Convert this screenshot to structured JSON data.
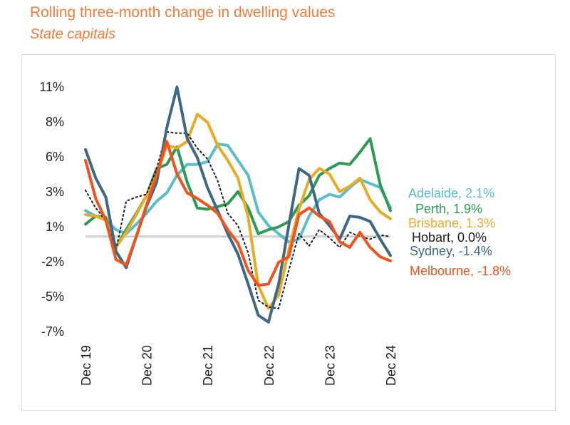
{
  "header": {
    "title": "Rolling three-month change in dwelling values",
    "subtitle": "State capitals"
  },
  "chart_data": {
    "type": "line",
    "title": "Rolling three-month change in dwelling values",
    "subtitle": "State capitals",
    "xlabel": "",
    "ylabel": "",
    "x_ticks": [
      "Dec 19",
      "Dec 20",
      "Dec 21",
      "Dec 22",
      "Dec 23",
      "Dec 24"
    ],
    "y_ticks": [
      "11%",
      "8%",
      "6%",
      "3%",
      "1%",
      "-2%",
      "-5%",
      "-7%"
    ],
    "y_tick_values": [
      11,
      8,
      6,
      3,
      1,
      -2,
      -5,
      -7
    ],
    "ylim": [
      -7,
      11
    ],
    "xlim": [
      0,
      60
    ],
    "grid": false,
    "zero_line": true,
    "legend": "end-labels-right",
    "x_unit": "months since Dec 19",
    "series": [
      {
        "name": "Adelaide",
        "end_label": "Adelaide, 2.1%",
        "color": "#5bbccc",
        "x": [
          0,
          2,
          4,
          6,
          8,
          10,
          12,
          14,
          16,
          18,
          20,
          22,
          24,
          26,
          28,
          30,
          32,
          34,
          36,
          38,
          40,
          42,
          44,
          46,
          48,
          50,
          52,
          54,
          56,
          58,
          60
        ],
        "y": [
          1.9,
          1.5,
          1.2,
          0.5,
          0.2,
          0.9,
          1.7,
          2.6,
          3.2,
          4.5,
          5.3,
          5.3,
          5.5,
          6.8,
          6.7,
          5.6,
          4.5,
          1.8,
          0.8,
          0.2,
          -0.4,
          -0.2,
          1.5,
          2.7,
          3.1,
          2.9,
          3.6,
          4.2,
          3.9,
          3.6,
          2.1
        ]
      },
      {
        "name": "Perth",
        "end_label": "Perth, 1.9%",
        "color": "#2e9a55",
        "x": [
          0,
          2,
          4,
          6,
          8,
          10,
          12,
          14,
          16,
          18,
          20,
          22,
          24,
          26,
          28,
          30,
          32,
          34,
          36,
          38,
          40,
          42,
          44,
          46,
          48,
          50,
          52,
          54,
          56,
          58,
          60
        ],
        "y": [
          0.9,
          1.5,
          1.4,
          -0.8,
          0.5,
          1.7,
          3.0,
          5.0,
          5.3,
          6.6,
          4.0,
          2.1,
          2.0,
          2.2,
          2.4,
          3.3,
          2.1,
          0.2,
          0.5,
          0.7,
          1.1,
          2.3,
          3.0,
          4.5,
          5.0,
          5.4,
          5.3,
          6.2,
          7.2,
          3.8,
          1.9
        ]
      },
      {
        "name": "Brisbane",
        "end_label": "Brisbane, 1.3%",
        "color": "#e7ab2a",
        "x": [
          0,
          2,
          4,
          6,
          8,
          10,
          12,
          14,
          16,
          18,
          20,
          22,
          24,
          26,
          28,
          30,
          32,
          34,
          36,
          38,
          40,
          42,
          44,
          46,
          48,
          50,
          52,
          54,
          56,
          58,
          60
        ],
        "y": [
          1.6,
          1.5,
          1.2,
          -0.8,
          0.3,
          1.6,
          3.0,
          4.5,
          6.7,
          6.5,
          7.0,
          9.0,
          8.4,
          6.7,
          5.6,
          4.3,
          1.4,
          -3.6,
          -5.3,
          -4.3,
          -1.0,
          2.0,
          4.2,
          5.0,
          4.6,
          3.3,
          3.7,
          4.3,
          2.7,
          1.8,
          1.3
        ]
      },
      {
        "name": "Hobart",
        "end_label": "Hobart, 0.0%",
        "color": "#1a1a1a",
        "dashed": true,
        "x": [
          0,
          2,
          4,
          6,
          8,
          10,
          12,
          14,
          16,
          18,
          20,
          22,
          24,
          26,
          28,
          30,
          32,
          34,
          36,
          38,
          40,
          42,
          44,
          46,
          48,
          50,
          52,
          54,
          56,
          58,
          60
        ],
        "y": [
          3.4,
          2.1,
          1.2,
          -1.0,
          2.6,
          2.9,
          3.1,
          5.0,
          7.7,
          7.6,
          7.6,
          6.5,
          5.7,
          4.1,
          1.7,
          0.8,
          -1.2,
          -4.7,
          -5.2,
          -5.3,
          -2.5,
          0.2,
          -0.7,
          0.5,
          -0.1,
          -0.8,
          0.3,
          0.0,
          -0.2,
          0.1,
          0.0
        ]
      },
      {
        "name": "Sydney",
        "end_label": "Sydney, -1.4%",
        "color": "#3e6883",
        "x": [
          0,
          2,
          4,
          6,
          8,
          10,
          12,
          14,
          16,
          18,
          20,
          22,
          24,
          26,
          28,
          30,
          32,
          34,
          36,
          38,
          40,
          42,
          44,
          46,
          48,
          50,
          52,
          54,
          56,
          58,
          60
        ],
        "y": [
          6.4,
          4.3,
          2.9,
          -1.1,
          -2.3,
          0.0,
          2.2,
          4.0,
          8.0,
          11.0,
          7.2,
          5.8,
          3.6,
          1.9,
          0.2,
          -1.3,
          -3.5,
          -5.8,
          -6.3,
          -3.5,
          0.8,
          5.0,
          4.5,
          1.7,
          0.8,
          -0.2,
          1.5,
          1.4,
          1.1,
          -0.2,
          -1.4
        ]
      },
      {
        "name": "Melbourne",
        "end_label": "Melbourne, -1.8%",
        "color": "#f0541e",
        "x": [
          0,
          2,
          4,
          6,
          8,
          10,
          12,
          14,
          16,
          18,
          20,
          22,
          24,
          26,
          28,
          30,
          32,
          34,
          36,
          38,
          40,
          42,
          44,
          46,
          48,
          50,
          52,
          54,
          56,
          58,
          60
        ],
        "y": [
          5.6,
          2.8,
          1.2,
          -1.7,
          -2.1,
          0.0,
          2.3,
          4.5,
          7.0,
          4.6,
          3.2,
          2.8,
          2.3,
          1.7,
          0.5,
          -0.5,
          -2.5,
          -3.6,
          -3.5,
          -1.9,
          -1.5,
          1.6,
          2.1,
          1.5,
          1.1,
          -0.4,
          -0.8,
          0.3,
          -0.8,
          -1.5,
          -1.8
        ]
      }
    ]
  }
}
